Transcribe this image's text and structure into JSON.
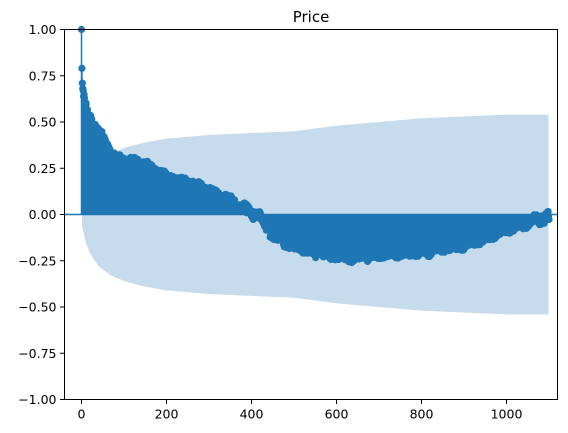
{
  "chart_data": {
    "type": "scatter",
    "title": "Price",
    "xlabel": "",
    "ylabel": "",
    "xlim": [
      -40,
      1120
    ],
    "ylim": [
      -1.0,
      1.0
    ],
    "x_ticks": [
      0,
      200,
      400,
      600,
      800,
      1000
    ],
    "x_tick_labels": [
      "0",
      "200",
      "400",
      "600",
      "800",
      "1000"
    ],
    "y_ticks": [
      1.0,
      0.75,
      0.5,
      0.25,
      0.0,
      -0.25,
      -0.5,
      -0.75,
      -1.0
    ],
    "y_tick_labels": [
      "1.00",
      "0.75",
      "0.50",
      "0.25",
      "0.00",
      "−0.25",
      "−0.50",
      "−0.75",
      "−1.00"
    ],
    "grid": false,
    "legend": "none",
    "colors": {
      "stem": "#1f77b4",
      "confidence_band": "#c6dbec",
      "zero_line": "#1f77b4"
    },
    "series": [
      {
        "kind": "autocorrelation_stems",
        "lags_max": 1100,
        "acf_keypoints": [
          [
            0,
            1.0
          ],
          [
            1,
            0.79
          ],
          [
            2,
            0.71
          ],
          [
            3,
            0.68
          ],
          [
            5,
            0.65
          ],
          [
            8,
            0.6
          ],
          [
            15,
            0.55
          ],
          [
            25,
            0.52
          ],
          [
            40,
            0.46
          ],
          [
            60,
            0.38
          ],
          [
            80,
            0.31
          ],
          [
            100,
            0.3
          ],
          [
            150,
            0.28
          ],
          [
            200,
            0.21
          ],
          [
            250,
            0.18
          ],
          [
            300,
            0.14
          ],
          [
            350,
            0.09
          ],
          [
            400,
            0.02
          ],
          [
            420,
            0.0
          ],
          [
            450,
            -0.1
          ],
          [
            500,
            -0.16
          ],
          [
            550,
            -0.19
          ],
          [
            600,
            -0.21
          ],
          [
            650,
            -0.22
          ],
          [
            700,
            -0.2
          ],
          [
            750,
            -0.19
          ],
          [
            800,
            -0.19
          ],
          [
            850,
            -0.17
          ],
          [
            900,
            -0.15
          ],
          [
            950,
            -0.11
          ],
          [
            1000,
            -0.06
          ],
          [
            1050,
            -0.03
          ],
          [
            1100,
            0.0
          ]
        ]
      },
      {
        "kind": "confidence_interval",
        "band_keypoints": [
          [
            1,
            0.06
          ],
          [
            5,
            0.1
          ],
          [
            10,
            0.15
          ],
          [
            20,
            0.21
          ],
          [
            40,
            0.28
          ],
          [
            70,
            0.33
          ],
          [
            100,
            0.36
          ],
          [
            150,
            0.39
          ],
          [
            200,
            0.41
          ],
          [
            300,
            0.43
          ],
          [
            400,
            0.44
          ],
          [
            500,
            0.45
          ],
          [
            600,
            0.48
          ],
          [
            700,
            0.5
          ],
          [
            800,
            0.52
          ],
          [
            900,
            0.53
          ],
          [
            1000,
            0.54
          ],
          [
            1100,
            0.54
          ]
        ]
      }
    ]
  }
}
